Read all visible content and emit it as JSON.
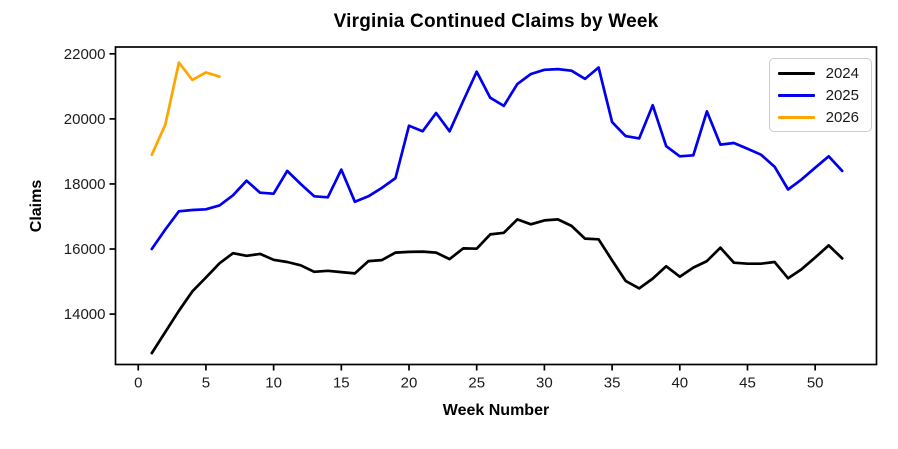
{
  "chart_data": {
    "type": "line",
    "title": "Virginia Continued Claims by Week",
    "xlabel": "Week Number",
    "ylabel": "Claims",
    "xlim": [
      -1.68,
      54.53
    ],
    "ylim": [
      12450,
      22210
    ],
    "xticks": [
      0,
      5,
      10,
      15,
      20,
      25,
      30,
      35,
      40,
      45,
      50
    ],
    "yticks": [
      14000,
      16000,
      18000,
      20000,
      22000
    ],
    "grid": false,
    "legend_position": "upper right",
    "series": [
      {
        "name": "2024",
        "color": "#000000",
        "x": [
          1,
          2,
          3,
          4,
          5,
          6,
          7,
          8,
          9,
          10,
          11,
          12,
          13,
          14,
          15,
          16,
          17,
          18,
          19,
          20,
          21,
          22,
          23,
          24,
          25,
          26,
          27,
          28,
          29,
          30,
          31,
          32,
          33,
          34,
          35,
          36,
          37,
          38,
          39,
          40,
          41,
          42,
          43,
          44,
          45,
          46,
          47,
          48,
          49,
          50,
          51,
          52
        ],
        "values": [
          12800,
          13450,
          14100,
          14700,
          15120,
          15560,
          15870,
          15790,
          15850,
          15670,
          15600,
          15500,
          15300,
          15330,
          15290,
          15250,
          15630,
          15660,
          15890,
          15910,
          15920,
          15890,
          15690,
          16020,
          16010,
          16450,
          16500,
          16910,
          16760,
          16880,
          16910,
          16710,
          16320,
          16300,
          15650,
          15020,
          14790,
          15090,
          15470,
          15150,
          15430,
          15630,
          16040,
          15580,
          15550,
          15550,
          15600,
          15100,
          15380,
          15740,
          16110,
          15710
        ]
      },
      {
        "name": "2025",
        "color": "#0000ee",
        "x": [
          1,
          2,
          3,
          4,
          5,
          6,
          7,
          8,
          9,
          10,
          11,
          12,
          13,
          14,
          15,
          16,
          17,
          18,
          19,
          20,
          21,
          22,
          23,
          24,
          25,
          26,
          27,
          28,
          29,
          30,
          31,
          32,
          33,
          34,
          35,
          36,
          37,
          38,
          39,
          40,
          41,
          42,
          43,
          44,
          45,
          46,
          47,
          48,
          49,
          50,
          51,
          52
        ],
        "values": [
          16000,
          16600,
          17160,
          17200,
          17220,
          17340,
          17650,
          18100,
          17730,
          17700,
          18400,
          18000,
          17620,
          17590,
          18440,
          17450,
          17620,
          17880,
          18180,
          19790,
          19620,
          20180,
          19620,
          20550,
          21450,
          20650,
          20400,
          21070,
          21380,
          21510,
          21530,
          21480,
          21230,
          21580,
          19900,
          19470,
          19400,
          20420,
          19160,
          18850,
          18880,
          20230,
          19210,
          19260,
          19080,
          18900,
          18530,
          17830,
          18140,
          18500,
          18850,
          18400
        ]
      },
      {
        "name": "2026",
        "color": "#ffa500",
        "x": [
          1,
          2,
          3,
          4,
          5,
          6
        ],
        "values": [
          18900,
          19820,
          21730,
          21200,
          21430,
          21300
        ]
      }
    ]
  }
}
